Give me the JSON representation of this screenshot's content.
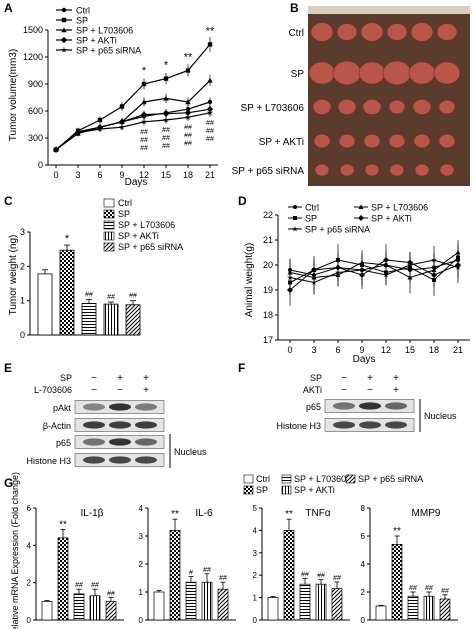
{
  "panels": {
    "A": "A",
    "B": "B",
    "C": "C",
    "D": "D",
    "E": "E",
    "F": "F",
    "G": "G"
  },
  "series_names": [
    "Ctrl",
    "SP",
    "SP + L703606",
    "SP + AKTi",
    "SP + p65 siRNA"
  ],
  "chart_data": [
    {
      "type": "line",
      "panel": "A",
      "xlabel": "Days",
      "ylabel": "Tumor volume(mm3)",
      "x": [
        0,
        3,
        6,
        9,
        12,
        15,
        18,
        21
      ],
      "ylim": [
        0,
        1500
      ],
      "yticks": [
        0,
        300,
        600,
        900,
        1200,
        1500
      ],
      "grid": false,
      "legend": "top-left",
      "series": [
        {
          "name": "Ctrl",
          "values": [
            170,
            370,
            420,
            480,
            540,
            580,
            620,
            700
          ]
        },
        {
          "name": "SP",
          "values": [
            170,
            380,
            500,
            650,
            900,
            960,
            1050,
            1340
          ]
        },
        {
          "name": "SP + L703606",
          "values": [
            170,
            350,
            420,
            480,
            700,
            740,
            700,
            940
          ]
        },
        {
          "name": "SP + AKTi",
          "values": [
            170,
            360,
            420,
            480,
            560,
            570,
            580,
            620
          ]
        },
        {
          "name": "SP + p65 siRNA",
          "values": [
            170,
            360,
            400,
            420,
            480,
            500,
            530,
            580
          ]
        }
      ],
      "annotations": {
        "above": [
          {
            "x": 12,
            "text": "*"
          },
          {
            "x": 15,
            "text": "*"
          },
          {
            "x": 18,
            "text": "**"
          },
          {
            "x": 21,
            "text": "**"
          }
        ],
        "below_x": [
          12,
          15,
          18,
          21
        ],
        "below_text": "##"
      }
    },
    {
      "type": "bar",
      "panel": "C",
      "ylabel": "Tumor weight (ng)",
      "categories": [
        "Ctrl",
        "SP",
        "SP + L703606",
        "SP + AKTi",
        "SP + p65 siRNA"
      ],
      "values": [
        1.78,
        2.47,
        0.92,
        0.9,
        0.88
      ],
      "errors": [
        0.12,
        0.15,
        0.12,
        0.06,
        0.12
      ],
      "ylim": [
        0,
        3
      ],
      "yticks": [
        0,
        1,
        2,
        3
      ],
      "labels": [
        "",
        "*",
        "##",
        "##",
        "##"
      ],
      "legend": "top-right"
    },
    {
      "type": "line",
      "panel": "D",
      "xlabel": "Days",
      "ylabel": "Animal weight(g)",
      "x": [
        0,
        3,
        6,
        9,
        12,
        15,
        18,
        21
      ],
      "ylim": [
        17,
        22
      ],
      "yticks": [
        17,
        18,
        19,
        20,
        21,
        22
      ],
      "legend": "top",
      "series": [
        {
          "name": "Ctrl",
          "values": [
            19.8,
            19.6,
            19.9,
            19.8,
            20.0,
            19.8,
            19.9,
            20.2
          ]
        },
        {
          "name": "SP",
          "values": [
            19.3,
            19.8,
            20.2,
            20.0,
            19.7,
            19.9,
            19.4,
            20.3
          ]
        },
        {
          "name": "SP + L703606",
          "values": [
            19.7,
            19.5,
            19.6,
            20.1,
            20.0,
            19.5,
            19.8,
            20.5
          ]
        },
        {
          "name": "SP + AKTi",
          "values": [
            19.0,
            19.8,
            19.9,
            19.6,
            20.2,
            20.1,
            19.6,
            20.0
          ]
        },
        {
          "name": "SP + p65 siRNA",
          "values": [
            19.5,
            19.3,
            19.7,
            19.8,
            19.6,
            20.0,
            20.2,
            19.9
          ]
        }
      ],
      "errors": 0.7
    },
    {
      "type": "bar",
      "panel": "G",
      "ylabel": "Relative mRNA Expression (Fold change)",
      "legend": "top",
      "groups": [
        {
          "title": "IL-1β",
          "ylim": [
            0,
            6
          ],
          "yticks": [
            0,
            2,
            4,
            6
          ],
          "values": [
            1.0,
            4.4,
            1.4,
            1.3,
            1.0
          ],
          "errors": [
            0.05,
            0.45,
            0.25,
            0.35,
            0.2
          ],
          "labels": [
            "",
            "**",
            "##",
            "##",
            "##"
          ]
        },
        {
          "title": "IL-6",
          "ylim": [
            0,
            4
          ],
          "yticks": [
            0,
            1,
            2,
            3,
            4
          ],
          "values": [
            1.0,
            3.2,
            1.35,
            1.35,
            1.1
          ],
          "errors": [
            0.05,
            0.4,
            0.2,
            0.3,
            0.25
          ],
          "labels": [
            "",
            "**",
            "#",
            "##",
            "##"
          ]
        },
        {
          "title": "TNFα",
          "ylim": [
            0,
            5
          ],
          "yticks": [
            0,
            1,
            2,
            3,
            4,
            5
          ],
          "values": [
            1.0,
            4.0,
            1.6,
            1.6,
            1.4
          ],
          "errors": [
            0.05,
            0.5,
            0.25,
            0.2,
            0.3
          ],
          "labels": [
            "",
            "**",
            "##",
            "##",
            "##"
          ]
        },
        {
          "title": "MMP9",
          "ylim": [
            0,
            8
          ],
          "yticks": [
            0,
            2,
            4,
            6,
            8
          ],
          "values": [
            1.0,
            5.4,
            1.7,
            1.7,
            1.5
          ],
          "errors": [
            0.05,
            0.6,
            0.3,
            0.3,
            0.3
          ],
          "labels": [
            "",
            "**",
            "##",
            "##",
            "##"
          ]
        }
      ]
    }
  ],
  "photo": {
    "row_labels": [
      "Ctrl",
      "SP",
      "SP + L703606",
      "SP + AKTi",
      "SP + p65 siRNA"
    ],
    "background": "#5a3b2c",
    "tumor_color": "#b9564a"
  },
  "blots": {
    "E": {
      "top_labels": [
        "SP",
        "L-703606"
      ],
      "signs": [
        [
          "−",
          "+",
          "+"
        ],
        [
          "−",
          "−",
          "+"
        ]
      ],
      "rows": [
        "pAkt",
        "β-Actin",
        "p65",
        "Histone H3"
      ],
      "nucleus": "Nucleus"
    },
    "F": {
      "top_labels": [
        "SP",
        "AKTi"
      ],
      "signs": [
        [
          "−",
          "+",
          "+"
        ],
        [
          "−",
          "−",
          "+"
        ]
      ],
      "rows": [
        "p65",
        "Histone H3"
      ],
      "nucleus": "Nucleus"
    }
  }
}
